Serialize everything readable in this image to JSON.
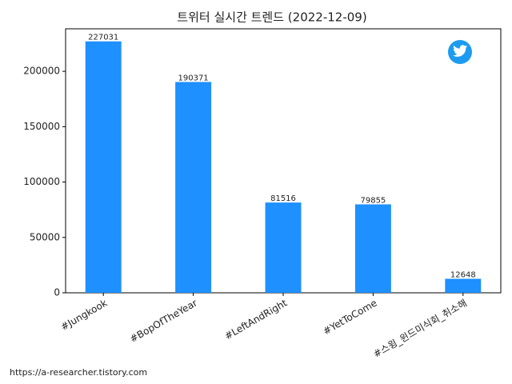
{
  "chart_data": {
    "type": "bar",
    "title": "트위터 실시간 트렌드 (2022-12-09)",
    "categories": [
      "#Jungkook",
      "#BopOfTheYear",
      "#LeftAndRight",
      "#YetToCome",
      "#스윙_윈드미식회_취소해"
    ],
    "values": [
      227031,
      190371,
      81516,
      79855,
      12648
    ],
    "color": "#1e90ff",
    "ylim": [
      0,
      238383
    ],
    "yticks": [
      0,
      50000,
      100000,
      150000,
      200000
    ],
    "grid": false
  },
  "footer": "https://a-researcher.tistory.com"
}
